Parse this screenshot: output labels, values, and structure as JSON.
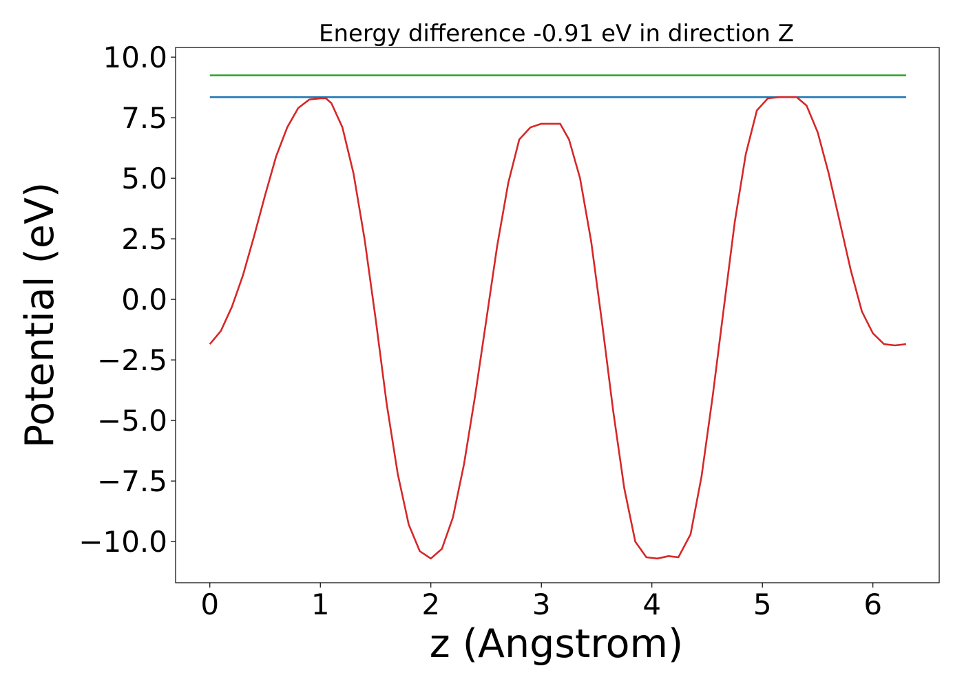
{
  "chart_data": {
    "type": "line",
    "title": "Energy difference -0.91 eV in direction Z",
    "xlabel": "z (Angstrom)",
    "ylabel": "Potential (eV)",
    "xlim": [
      -0.31,
      6.6
    ],
    "ylim": [
      -11.7,
      10.4
    ],
    "xticks": [
      0,
      1,
      2,
      3,
      4,
      5,
      6
    ],
    "xtick_labels": [
      "0",
      "1",
      "2",
      "3",
      "4",
      "5",
      "6"
    ],
    "yticks": [
      -10.0,
      -7.5,
      -5.0,
      -2.5,
      0.0,
      2.5,
      5.0,
      7.5,
      10.0
    ],
    "ytick_labels": [
      "−10.0",
      "−7.5",
      "−5.0",
      "−2.5",
      "0.0",
      "2.5",
      "5.0",
      "7.5",
      "10.0"
    ],
    "grid": false,
    "legend": false,
    "series": [
      {
        "color": "#2ca02c",
        "x": [
          0.0,
          6.3
        ],
        "y": [
          9.25,
          9.25
        ]
      },
      {
        "color": "#1f77b4",
        "x": [
          0.0,
          6.3
        ],
        "y": [
          8.35,
          8.35
        ]
      },
      {
        "color": "#d62728",
        "x": [
          0.0,
          0.1,
          0.2,
          0.3,
          0.4,
          0.5,
          0.6,
          0.7,
          0.8,
          0.9,
          1.0,
          1.05,
          1.1,
          1.2,
          1.3,
          1.4,
          1.5,
          1.6,
          1.7,
          1.8,
          1.9,
          2.0,
          2.1,
          2.2,
          2.3,
          2.4,
          2.5,
          2.6,
          2.7,
          2.8,
          2.9,
          3.0,
          3.1,
          3.17,
          3.25,
          3.35,
          3.45,
          3.55,
          3.65,
          3.75,
          3.85,
          3.95,
          4.05,
          4.15,
          4.24,
          4.35,
          4.45,
          4.55,
          4.65,
          4.75,
          4.85,
          4.95,
          5.05,
          5.15,
          5.25,
          5.31,
          5.4,
          5.5,
          5.6,
          5.7,
          5.8,
          5.9,
          6.0,
          6.1,
          6.2,
          6.3
        ],
        "y": [
          -1.85,
          -1.3,
          -0.3,
          1.0,
          2.6,
          4.3,
          5.9,
          7.1,
          7.9,
          8.25,
          8.3,
          8.3,
          8.1,
          7.1,
          5.2,
          2.5,
          -0.8,
          -4.3,
          -7.2,
          -9.3,
          -10.4,
          -10.7,
          -10.3,
          -9.0,
          -6.8,
          -4.0,
          -0.9,
          2.2,
          4.8,
          6.6,
          7.1,
          7.25,
          7.25,
          7.25,
          6.6,
          5.0,
          2.4,
          -1.0,
          -4.6,
          -7.8,
          -10.0,
          -10.65,
          -10.7,
          -10.6,
          -10.65,
          -9.7,
          -7.3,
          -4.0,
          -0.4,
          3.2,
          6.0,
          7.8,
          8.3,
          8.35,
          8.35,
          8.35,
          8.0,
          6.9,
          5.2,
          3.2,
          1.2,
          -0.5,
          -1.4,
          -1.85,
          -1.9,
          -1.85
        ]
      }
    ]
  }
}
